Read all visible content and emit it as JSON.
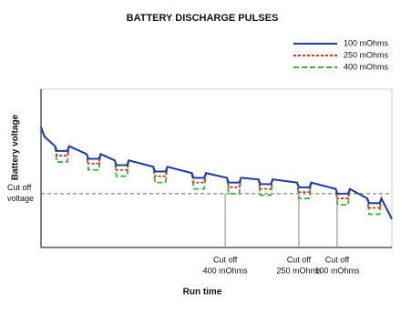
{
  "chart_data": {
    "type": "line",
    "title": "BATTERY DISCHARGE PULSES",
    "x_label": "Run time",
    "y_label": "Battery voltage",
    "xlim": [
      0,
      100
    ],
    "ylim": [
      0,
      100
    ],
    "x": [
      0,
      1,
      4,
      4.5,
      7.5,
      8,
      13,
      13.5,
      16.5,
      17,
      21,
      21.5,
      24.5,
      25,
      32,
      32.5,
      35.5,
      36,
      43,
      43.5,
      46.5,
      47,
      53,
      53.5,
      56.5,
      57,
      62,
      62.5,
      65.5,
      66,
      73,
      73.5,
      76.5,
      77,
      84,
      84.5,
      87.5,
      88,
      93,
      93.5,
      96.5,
      97,
      100
    ],
    "series": [
      {
        "name": "100 mOhms",
        "color": "#1f3f9f",
        "dash": "none",
        "values": [
          76,
          70,
          64,
          61,
          61,
          64,
          59,
          56,
          56,
          59,
          55,
          52,
          52,
          55,
          51,
          48,
          48,
          51,
          47,
          44,
          44,
          47,
          44,
          41,
          41,
          44,
          43,
          40,
          40,
          43,
          41,
          38,
          38,
          41,
          37,
          34,
          34,
          37,
          31,
          28,
          28,
          31,
          18
        ]
      },
      {
        "name": "250 mOhms",
        "color": "#e03020",
        "dash": "3 2",
        "values": [
          76,
          70,
          64,
          58,
          58,
          64,
          59,
          53,
          53,
          59,
          55,
          49,
          49,
          55,
          51,
          45,
          45,
          51,
          47,
          41,
          41,
          47,
          44,
          38,
          38,
          44,
          43,
          37,
          37,
          43,
          41,
          35,
          35,
          41,
          37,
          31,
          31,
          37,
          31,
          25,
          25,
          31,
          18
        ]
      },
      {
        "name": "400 mOhms",
        "color": "#40b040",
        "dash": "6 3",
        "values": [
          76,
          70,
          64,
          54,
          54,
          64,
          59,
          49,
          49,
          59,
          55,
          45,
          45,
          55,
          51,
          41,
          41,
          51,
          47,
          37,
          37,
          47,
          44,
          34,
          34,
          44,
          43,
          33,
          33,
          43,
          41,
          31,
          31,
          41,
          37,
          27,
          27,
          37,
          31,
          21,
          21,
          31,
          18
        ]
      }
    ],
    "cutoff": {
      "lines": [
        "Cut off",
        "voltage"
      ],
      "y": 34
    },
    "annotations": [
      {
        "lines": [
          "Cut off",
          "400 mOhms"
        ],
        "x": 52.5
      },
      {
        "lines": [
          "Cut off",
          "250 mOhms"
        ],
        "x": 73.5
      },
      {
        "lines": [
          "Cut off",
          "100 mOhms"
        ],
        "x": 84.4
      }
    ]
  }
}
